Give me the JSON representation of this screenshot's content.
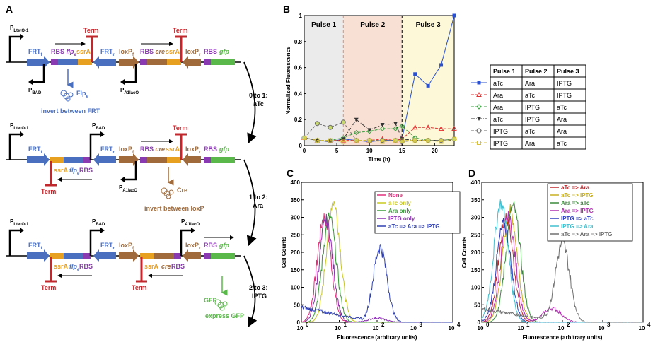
{
  "panel_labels": {
    "a": "A",
    "b": "B",
    "c": "C",
    "d": "D"
  },
  "colors": {
    "blue": "#4a6fbf",
    "brown": "#a06a3a",
    "red": "#c0282e",
    "orange": "#e8a020",
    "purple": "#8a3ab0",
    "green": "#4caf50",
    "gfp_green": "#5ab84a"
  },
  "circuit": {
    "row1": {
      "promoter_top": "P",
      "promoter_top_sub": "LtetO-1",
      "FRT_f": "FRT",
      "FRT_f_sub": "f",
      "RBS_flp": "RBS",
      "flp": "flp",
      "flp_sub": "e",
      "ssrA1": "ssrA",
      "term1": "Term",
      "FRT_r": "FRT",
      "FRT_r_sub": "r",
      "loxP_f": "loxP",
      "loxP_f_sub": "f",
      "RBS_cre": "RBS",
      "cre": "cre",
      "ssrA2": "ssrA",
      "term2": "Term",
      "loxP_r": "loxP",
      "loxP_r_sub": "r",
      "RBS_gfp": "RBS",
      "gfp": "gfp",
      "pbad": "P",
      "pbad_sub": "BAD",
      "pa1": "P",
      "pa1_sub": "A1lacO",
      "enzyme": "Flp",
      "enzyme_sub": "e",
      "action": "invert between FRT"
    },
    "transition1": {
      "step": "0 to 1:",
      "inducer": "aTc"
    },
    "row2": {
      "promoter_top": "P",
      "promoter_top_sub": "LtetO-1",
      "FRT_f": "FRT",
      "FRT_f_sub": "f",
      "pbad": "P",
      "pbad_sub": "BAD",
      "FRT_r": "FRT",
      "FRT_r_sub": "r",
      "loxP_f": "loxP",
      "loxP_f_sub": "f",
      "RBS_cre": "RBS",
      "cre": "cre",
      "ssrA2": "ssrA",
      "term2": "Term",
      "loxP_r": "loxP",
      "loxP_r_sub": "r",
      "RBS_gfp": "RBS",
      "gfp": "gfp",
      "ssrA1": "ssrA",
      "flp": "flp",
      "flp_sub": "e",
      "RBS_flp": "RBS",
      "term1": "Term",
      "pa1": "P",
      "pa1_sub": "A1lacO",
      "enzyme": "Cre",
      "action": "invert between loxP"
    },
    "transition2": {
      "step": "1 to 2:",
      "inducer": "Ara"
    },
    "row3": {
      "promoter_top": "P",
      "promoter_top_sub": "LtetO-1",
      "pbad": "P",
      "pbad_sub": "BAD",
      "pa1": "P",
      "pa1_sub": "A1lacO",
      "FRT_f": "FRT",
      "FRT_f_sub": "f",
      "FRT_r": "FRT",
      "FRT_r_sub": "r",
      "loxP_f": "loxP",
      "loxP_f_sub": "f",
      "loxP_r": "loxP",
      "loxP_r_sub": "r",
      "RBS_gfp": "RBS",
      "gfp": "gfp",
      "ssrA1": "ssrA",
      "flp": "flp",
      "flp_sub": "e",
      "RBS_flp": "RBS",
      "term1": "Term",
      "ssrA2": "ssrA",
      "cre": "cre",
      "RBS_cre": "RBS",
      "term2": "Term",
      "product": "GFP",
      "action": "express GFP"
    },
    "transition3": {
      "step": "2 to 3:",
      "inducer": "IPTG"
    }
  },
  "panel_b": {
    "pulse_labels": [
      "Pulse 1",
      "Pulse 2",
      "Pulse 3"
    ],
    "pulse_colors": [
      "#ebebeb",
      "#f9e0d4",
      "#fdf9d8"
    ],
    "table": {
      "headers": [
        "Pulse 1",
        "Pulse 2",
        "Pulse 3"
      ],
      "rows": [
        [
          "aTc",
          "Ara",
          "IPTG"
        ],
        [
          "Ara",
          "aTc",
          "IPTG"
        ],
        [
          "Ara",
          "IPTG",
          "aTc"
        ],
        [
          "aTc",
          "IPTG",
          "Ara"
        ],
        [
          "IPTG",
          "aTc",
          "Ara"
        ],
        [
          "IPTG",
          "Ara",
          "aTc"
        ]
      ]
    }
  },
  "chart_data": [
    {
      "type": "line",
      "xlabel": "Time (h)",
      "ylabel": "Normalized Fluorescence",
      "xlim": [
        0,
        23
      ],
      "ylim": [
        0,
        1
      ],
      "xticks": [
        "0",
        "5",
        "10",
        "15",
        "20"
      ],
      "yticks": [
        "0",
        "0.2",
        "0.4",
        "0.6",
        "0.8",
        "1"
      ],
      "pulse_boundaries": [
        6,
        15
      ],
      "series": [
        {
          "color": "#2a4fcf",
          "marker": "square",
          "dash": "solid",
          "x": [
            0,
            2,
            4,
            6,
            8,
            10,
            12,
            14,
            15,
            17,
            19,
            21,
            23
          ],
          "y": [
            0.06,
            0.04,
            0.03,
            0.05,
            0.04,
            0.03,
            0.04,
            0.04,
            0.05,
            0.55,
            0.46,
            0.62,
            1.0
          ]
        },
        {
          "color": "#e03030",
          "marker": "triangle",
          "dash": "dash",
          "x": [
            0,
            2,
            4,
            6,
            8,
            10,
            12,
            14,
            15,
            17,
            19,
            21,
            23
          ],
          "y": [
            0.06,
            0.04,
            0.04,
            0.04,
            0.04,
            0.04,
            0.05,
            0.04,
            0.05,
            0.14,
            0.14,
            0.13,
            0.13
          ]
        },
        {
          "color": "#3aa040",
          "marker": "diamond",
          "dash": "dash",
          "x": [
            0,
            2,
            4,
            6,
            8,
            10,
            12,
            14,
            15,
            17,
            19,
            21,
            23
          ],
          "y": [
            0.06,
            0.04,
            0.04,
            0.06,
            0.1,
            0.11,
            0.13,
            0.13,
            0.15,
            0.06,
            0.04,
            0.04,
            0.05
          ]
        },
        {
          "color": "#333333",
          "marker": "triangle-down",
          "dash": "dashdot",
          "x": [
            0,
            2,
            4,
            6,
            8,
            10,
            12,
            14,
            15,
            17,
            19,
            21,
            23
          ],
          "y": [
            0.06,
            0.04,
            0.03,
            0.05,
            0.2,
            0.12,
            0.16,
            0.17,
            0.05,
            0.04,
            0.04,
            0.04,
            0.04
          ]
        },
        {
          "color": "#6a6a6a",
          "marker": "circle",
          "dash": "dash",
          "x": [
            0,
            2,
            4,
            6,
            8,
            10,
            12,
            14,
            15,
            17,
            19,
            21,
            23
          ],
          "y": [
            0.06,
            0.17,
            0.14,
            0.18,
            0.04,
            0.04,
            0.04,
            0.04,
            0.03,
            0.04,
            0.04,
            0.04,
            0.05
          ]
        },
        {
          "color": "#d8c23a",
          "marker": "square-open",
          "dash": "dash",
          "x": [
            0,
            2,
            4,
            6,
            8,
            10,
            12,
            14,
            15,
            17,
            19,
            21,
            23
          ],
          "y": [
            0.06,
            0.04,
            0.04,
            0.03,
            0.04,
            0.04,
            0.03,
            0.04,
            0.04,
            0.04,
            0.04,
            0.03,
            0.05
          ]
        }
      ]
    },
    {
      "type": "line",
      "xlabel": "Fluorescence (arbitrary units)",
      "ylabel": "Cell Counts",
      "xscale": "log",
      "xlim": [
        1,
        10000
      ],
      "ylim": [
        0,
        400
      ],
      "xticks": [
        "10",
        "10",
        "10",
        "10",
        "10"
      ],
      "xtick_exp": [
        "0",
        "1",
        "2",
        "3",
        "4"
      ],
      "yticks": [
        "0",
        "50",
        "100",
        "150",
        "200",
        "250",
        "300",
        "350",
        "400"
      ],
      "legend_position": "top-right",
      "series": [
        {
          "name": "None",
          "color": "#e0307a",
          "peak_x": 4,
          "peak_y": 300,
          "bg": 0
        },
        {
          "name": "aTc only",
          "color": "#c8c820",
          "peak_x": 7,
          "peak_y": 345,
          "bg": 0
        },
        {
          "name": "Ara only",
          "color": "#3a9a3a",
          "peak_x": 5.5,
          "peak_y": 300,
          "bg": 0
        },
        {
          "name": "IPTG only",
          "color": "#8a30b0",
          "peak_x": 4.5,
          "peak_y": 290,
          "peak2_x": 100,
          "peak2_y": 12,
          "bg": 0
        },
        {
          "name": "aTc => Ara => IPTG",
          "color": "#3040b0",
          "peak_x": 120,
          "peak_y": 215,
          "bg": 35
        }
      ]
    },
    {
      "type": "line",
      "xlabel": "Fluorescence (arbitrary units)",
      "ylabel": "Cell Counts",
      "xscale": "log",
      "xlim": [
        1,
        10000
      ],
      "ylim": [
        0,
        400
      ],
      "xticks": [
        "10",
        "10",
        "10",
        "10",
        "10"
      ],
      "xtick_exp": [
        "0",
        "1",
        "2",
        "3",
        "4"
      ],
      "yticks": [
        "0",
        "50",
        "100",
        "150",
        "200",
        "250",
        "300",
        "350",
        "400"
      ],
      "legend_position": "top-right",
      "series": [
        {
          "name": "aTc => Ara",
          "color": "#c0282e",
          "peak_x": 4,
          "peak_y": 300,
          "bg": 0
        },
        {
          "name": "aTc => IPTG",
          "color": "#c8b020",
          "peak_x": 5,
          "peak_y": 320,
          "bg": 0
        },
        {
          "name": "Ara => aTc",
          "color": "#3a8a3a",
          "peak_x": 6,
          "peak_y": 330,
          "bg": 0
        },
        {
          "name": "Ara => IPTG",
          "color": "#b030b0",
          "peak_x": 4.5,
          "peak_y": 300,
          "peak2_x": 55,
          "peak2_y": 40,
          "bg": 0
        },
        {
          "name": "IPTG => aTc",
          "color": "#3040c0",
          "peak_x": 3.5,
          "peak_y": 280,
          "bg": 0
        },
        {
          "name": "IPTG => Ara",
          "color": "#40c0d0",
          "peak_x": 3,
          "peak_y": 340,
          "bg": 0
        },
        {
          "name": "aTc => Ara => IPTG",
          "color": "#707070",
          "peak_x": 100,
          "peak_y": 225,
          "bg": 30
        }
      ]
    }
  ]
}
